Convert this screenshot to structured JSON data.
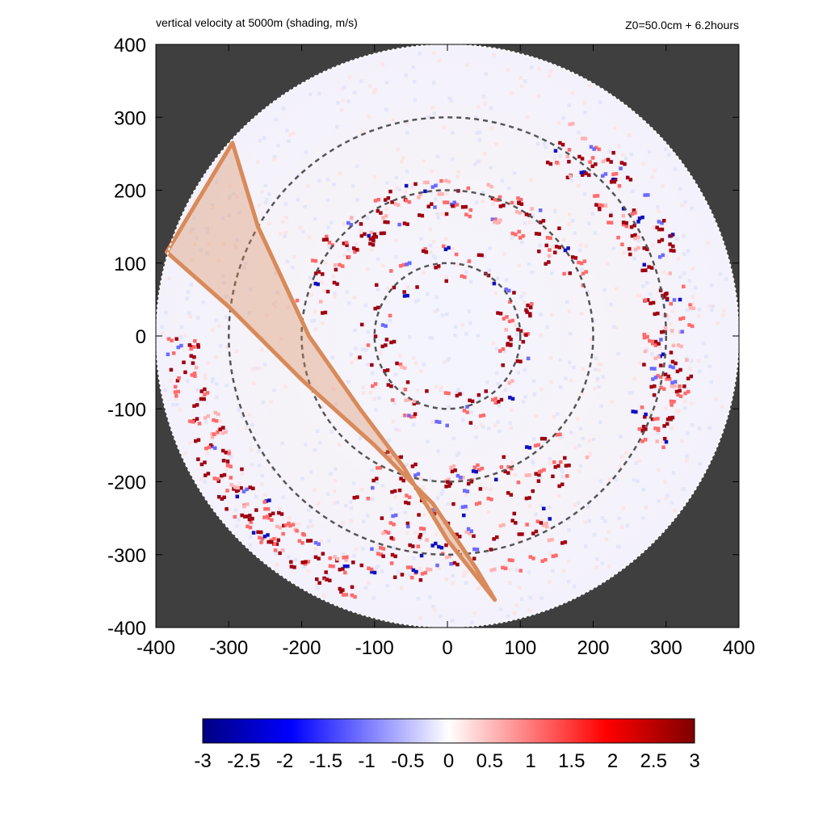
{
  "chart_data": {
    "type": "heatmap",
    "title": "vertical velocity at 5000m (shading, m/s)",
    "subtitle": "Z0=50.0cm  + 6.2hours",
    "xlabel": "",
    "ylabel": "",
    "xlim": [
      -400,
      400
    ],
    "ylim": [
      -400,
      400
    ],
    "x_ticks": [
      "-400",
      "-300",
      "-200",
      "-100",
      "0",
      "100",
      "200",
      "300",
      "400"
    ],
    "y_ticks": [
      "400",
      "300",
      "200",
      "100",
      "0",
      "-100",
      "-200",
      "-300",
      "-400"
    ],
    "colorbar": {
      "min": -3,
      "max": 3,
      "ticks": [
        "-3",
        "-2.5",
        "-2",
        "-1.5",
        "-1",
        "-0.5",
        "0",
        "0.5",
        "1",
        "1.5",
        "2",
        "2.5",
        "3"
      ],
      "colors": [
        "#000080",
        "#0000ff",
        "#ffffff",
        "#ff0000",
        "#800000"
      ]
    },
    "domain_radius_km": 400,
    "range_rings_km": [
      100,
      200,
      300
    ],
    "swath": {
      "left_edge": [
        [
          -385,
          115
        ],
        [
          -300,
          40
        ],
        [
          -200,
          -60
        ],
        [
          -100,
          -150
        ],
        [
          -20,
          -230
        ],
        [
          40,
          -320
        ],
        [
          65,
          -362
        ]
      ],
      "right_edge": [
        [
          -295,
          265
        ],
        [
          -260,
          150
        ],
        [
          -190,
          0
        ],
        [
          -120,
          -100
        ],
        [
          -60,
          -180
        ],
        [
          0,
          -280
        ],
        [
          65,
          -362
        ]
      ],
      "color": "#d98a5a"
    },
    "features": [
      {
        "type": "convective-band",
        "region": "eyewall ring r~100"
      },
      {
        "type": "convective-band",
        "region": "spiral band r~200-300 north"
      },
      {
        "type": "convective-band",
        "region": "outer band r~350 east"
      },
      {
        "type": "convective-band",
        "region": "outer band southwest"
      }
    ]
  }
}
